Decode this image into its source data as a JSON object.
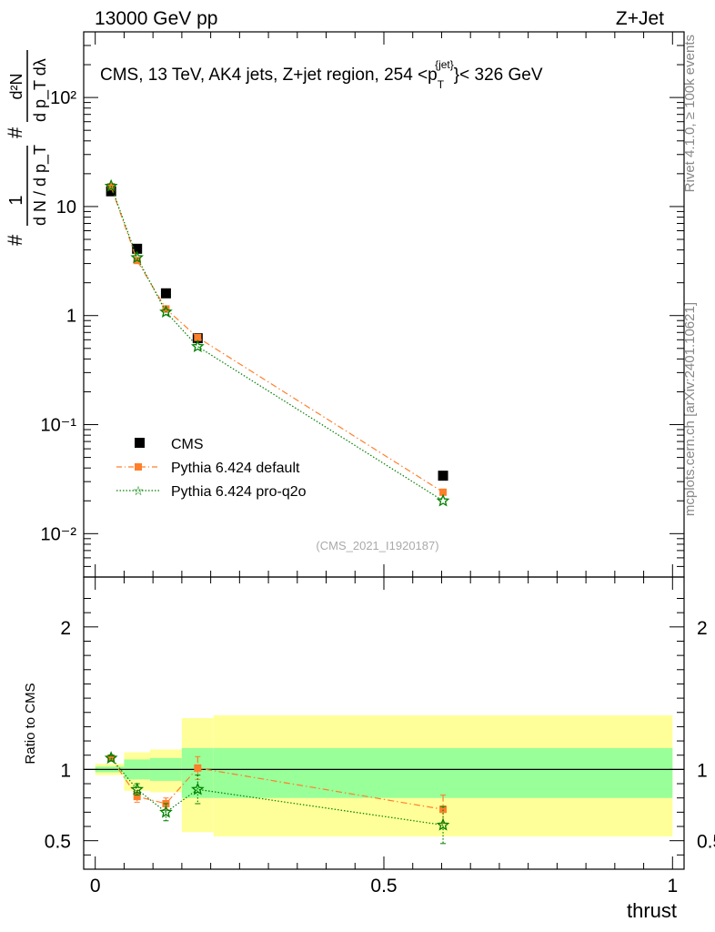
{
  "header": {
    "left": "13000 GeV pp",
    "right": "Z+Jet"
  },
  "side_labels": {
    "top": "Rivet 4.1.0, ≥ 100k events",
    "bottom": "mcplots.cern.ch [arXiv:2401.10621]"
  },
  "chart_data": [
    {
      "type": "scatter",
      "panel": "main",
      "title_parts": {
        "prefix": "CMS, 13 TeV, AK4 jets, Z+jet region, 254 <p",
        "sub": "T",
        "sup": "{jet}",
        "suffix": "}< 326 GeV"
      },
      "watermark": "(CMS_2021_I1920187)",
      "ylabel": {
        "num_top": "1",
        "num_bottom": "d N / d p_T",
        "den_top": "d²N",
        "den_bottom": "d p_T dλ",
        "hash": "#"
      },
      "yscale": "log",
      "ylim": [
        0.004,
        400
      ],
      "xlim": [
        -0.02,
        1.02
      ],
      "ytick_labels": [
        "10⁻²",
        "10⁻¹",
        "1",
        "10",
        "10²"
      ],
      "ytick_values": [
        0.01,
        0.1,
        1,
        10,
        100
      ],
      "legend": {
        "position": "lower-left",
        "entries": [
          "CMS",
          "Pythia 6.424 default",
          "Pythia 6.424 pro-q2o"
        ]
      },
      "series": [
        {
          "name": "CMS",
          "color": "#000000",
          "marker": "square",
          "x": [
            0.0275,
            0.0725,
            0.1225,
            0.1775,
            0.6025
          ],
          "y": [
            13.8,
            4.1,
            1.6,
            0.62,
            0.034
          ]
        },
        {
          "name": "Pythia 6.424 default",
          "color": "#ff7f2a",
          "marker": "square",
          "line": "dashdot",
          "x": [
            0.0275,
            0.0725,
            0.1225,
            0.1775,
            0.6025
          ],
          "y": [
            15.2,
            3.2,
            1.15,
            0.63,
            0.024
          ]
        },
        {
          "name": "Pythia 6.424 pro-q2o",
          "color": "#008000",
          "marker": "star",
          "line": "dotted",
          "x": [
            0.0275,
            0.0725,
            0.1225,
            0.1775,
            0.6025
          ],
          "y": [
            15.4,
            3.4,
            1.08,
            0.52,
            0.02
          ]
        }
      ]
    },
    {
      "type": "scatter",
      "panel": "ratio",
      "ylabel": "Ratio to CMS",
      "xlabel": "thrust",
      "ylim": [
        0.3,
        2.35
      ],
      "xlim": [
        -0.02,
        1.02
      ],
      "ytick_labels": [
        "0.5",
        "1",
        "2"
      ],
      "ytick_values": [
        0.5,
        1,
        2
      ],
      "xtick_labels": [
        "0",
        "0.5",
        "1"
      ],
      "xtick_values": [
        0,
        0.5,
        1
      ],
      "bands": {
        "edges": [
          0.0,
          0.05,
          0.095,
          0.15,
          0.205,
          1.0
        ],
        "outer_low": [
          0.96,
          0.85,
          0.84,
          0.56,
          0.53
        ],
        "outer_high": [
          1.04,
          1.12,
          1.14,
          1.36,
          1.38
        ],
        "inner_low": [
          0.98,
          0.93,
          0.92,
          0.8,
          0.8
        ],
        "inner_high": [
          1.02,
          1.07,
          1.08,
          1.15,
          1.15
        ]
      },
      "series": [
        {
          "name": "Pythia 6.424 default",
          "color": "#ff7f2a",
          "marker": "square",
          "line": "dashdot",
          "x": [
            0.0275,
            0.0725,
            0.1225,
            0.1775,
            0.6025
          ],
          "y": [
            1.08,
            0.81,
            0.76,
            1.01,
            0.72
          ],
          "err": [
            0.02,
            0.04,
            0.04,
            0.08,
            0.1
          ]
        },
        {
          "name": "Pythia 6.424 pro-q2o",
          "color": "#008000",
          "marker": "star",
          "line": "dotted",
          "x": [
            0.0275,
            0.0725,
            0.1225,
            0.1775,
            0.6025
          ],
          "y": [
            1.08,
            0.86,
            0.7,
            0.86,
            0.61
          ],
          "err": [
            0.02,
            0.04,
            0.06,
            0.1,
            0.13
          ]
        }
      ]
    }
  ]
}
